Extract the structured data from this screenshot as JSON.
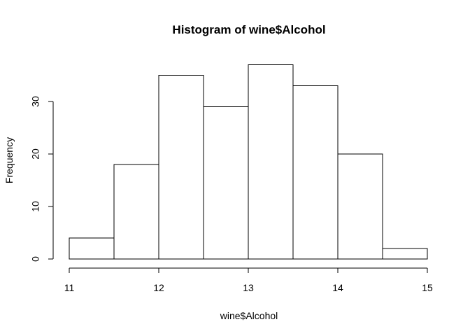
{
  "chart_data": {
    "type": "bar",
    "title": "Histogram of wine$Alcohol",
    "xlabel": "wine$Alcohol",
    "ylabel": "Frequency",
    "bins": [
      {
        "start": 11.0,
        "end": 11.5,
        "count": 4
      },
      {
        "start": 11.5,
        "end": 12.0,
        "count": 18
      },
      {
        "start": 12.0,
        "end": 12.5,
        "count": 35
      },
      {
        "start": 12.5,
        "end": 13.0,
        "count": 29
      },
      {
        "start": 13.0,
        "end": 13.5,
        "count": 37
      },
      {
        "start": 13.5,
        "end": 14.0,
        "count": 33
      },
      {
        "start": 14.0,
        "end": 14.5,
        "count": 20
      },
      {
        "start": 14.5,
        "end": 15.0,
        "count": 2
      }
    ],
    "xlim": [
      11,
      15
    ],
    "ylim": [
      0,
      37
    ],
    "xticks": [
      "11",
      "12",
      "13",
      "14",
      "15"
    ],
    "yticks": [
      "0",
      "10",
      "20",
      "30"
    ],
    "grid": false,
    "legend": "none"
  }
}
